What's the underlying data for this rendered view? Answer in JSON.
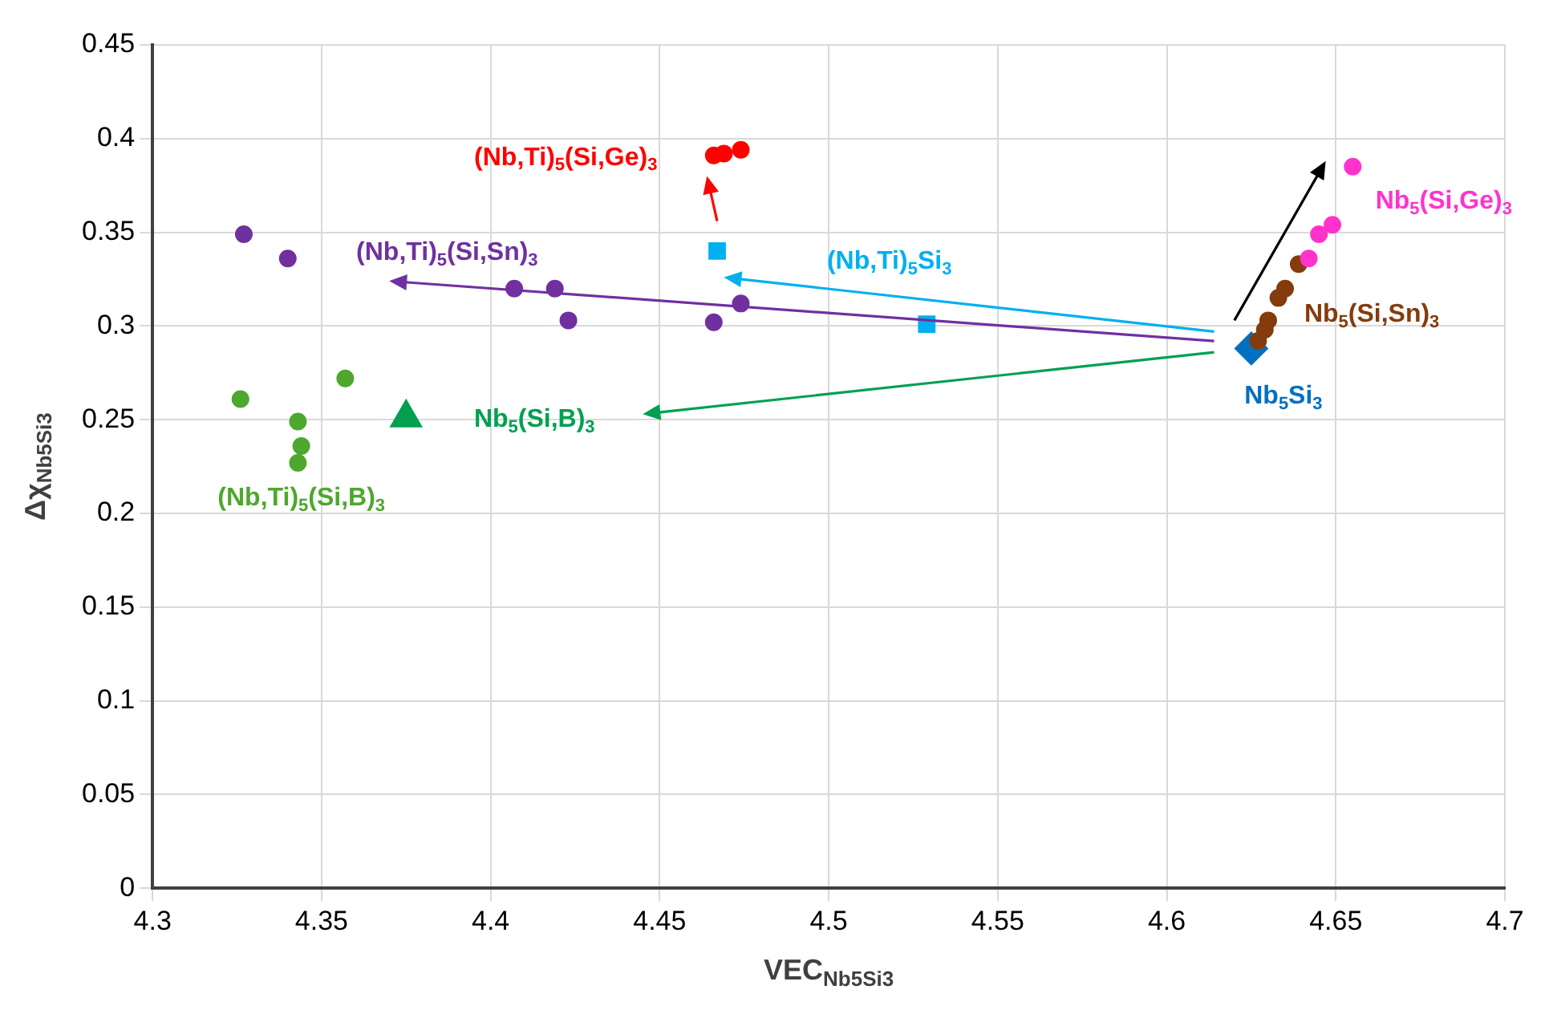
{
  "chart_data": {
    "type": "scatter",
    "xlabel": "VEC$_{Nb5Si3}$",
    "ylabel": "Δχ$_{Nb5Si3}$",
    "xlim": [
      4.3,
      4.7
    ],
    "xticks": [
      4.3,
      4.35,
      4.4,
      4.45,
      4.5,
      4.55,
      4.6,
      4.65,
      4.7
    ],
    "ylim": [
      0,
      0.45
    ],
    "yticks": [
      0,
      0.05,
      0.1,
      0.15,
      0.2,
      0.25,
      0.3,
      0.35,
      0.4,
      0.45
    ],
    "grid": true,
    "series": [
      {
        "name": "(Nb,Ti)$_{5}$(Si,Ge)$_{3}$",
        "color": "#ff0000",
        "marker": "circle",
        "x": [
          4.466,
          4.469,
          4.474
        ],
        "values": [
          0.391,
          0.392,
          0.394
        ]
      },
      {
        "name": "(Nb,Ti)$_{5}$(Si,Sn)$_{3}$",
        "color": "#7030a0",
        "marker": "circle",
        "x": [
          4.327,
          4.34,
          4.407,
          4.419,
          4.423,
          4.466,
          4.474
        ],
        "values": [
          0.349,
          0.336,
          0.32,
          0.32,
          0.303,
          0.302,
          0.312
        ]
      },
      {
        "name": "(Nb,Ti)$_{5}$Si$_{3}$",
        "color": "#00b0f0",
        "marker": "square",
        "x": [
          4.467,
          4.529
        ],
        "values": [
          0.34,
          0.301
        ]
      },
      {
        "name": "Nb$_{5}$(Si,B)$_{3}$",
        "color": "#00a050",
        "marker": "triangle",
        "x": [
          4.375
        ],
        "values": [
          0.251
        ]
      },
      {
        "name": "(Nb,Ti)$_{5}$(Si,B)$_{3}$",
        "color": "#4ea72e",
        "marker": "circle",
        "x": [
          4.326,
          4.357,
          4.343,
          4.344,
          4.343
        ],
        "values": [
          0.261,
          0.272,
          0.249,
          0.236,
          0.227
        ]
      },
      {
        "name": "Nb$_{5}$Si$_{3}$",
        "color": "#0070c0",
        "marker": "diamond",
        "x": [
          4.625
        ],
        "values": [
          0.288
        ]
      },
      {
        "name": "Nb$_{5}$(Si,Sn)$_{3}$",
        "color": "#843c0c",
        "marker": "circle",
        "x": [
          4.627,
          4.629,
          4.63,
          4.633,
          4.635,
          4.639
        ],
        "values": [
          0.292,
          0.298,
          0.303,
          0.315,
          0.32,
          0.333
        ]
      },
      {
        "name": "Nb$_{5}$(Si,Ge)$_{3}$",
        "color": "#ff33cc",
        "marker": "circle",
        "x": [
          4.642,
          4.645,
          4.649,
          4.655
        ],
        "values": [
          0.336,
          0.349,
          0.354,
          0.385
        ]
      }
    ]
  }
}
